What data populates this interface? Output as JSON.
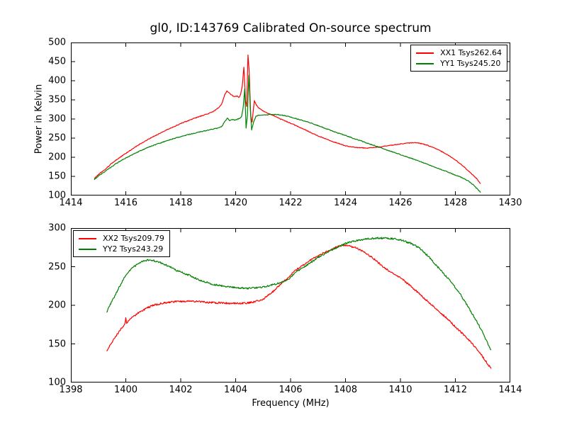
{
  "figure": {
    "background": "#ffffff",
    "axis_color": "#000000"
  },
  "chart_data": [
    {
      "type": "line",
      "title": "gl0, ID:143769 Calibrated On-source spectrum",
      "xlabel": "",
      "ylabel": "Power in Kelvin",
      "xlim": [
        1414,
        1430
      ],
      "ylim": [
        100,
        500
      ],
      "xticks": [
        1414,
        1416,
        1418,
        1420,
        1422,
        1424,
        1426,
        1428,
        1430
      ],
      "yticks": [
        100,
        150,
        200,
        250,
        300,
        350,
        400,
        450,
        500
      ],
      "grid": false,
      "legend_position": "upper right",
      "series": [
        {
          "name": "XX1 Tsys262.64",
          "color": "#ff0000",
          "noise": 0.9,
          "points": [
            [
              1414.85,
              144
            ],
            [
              1415.0,
              155
            ],
            [
              1415.25,
              168
            ],
            [
              1415.5,
              185
            ],
            [
              1415.75,
              198
            ],
            [
              1416.0,
              210
            ],
            [
              1416.25,
              222
            ],
            [
              1416.5,
              234
            ],
            [
              1416.75,
              244
            ],
            [
              1417.0,
              254
            ],
            [
              1417.25,
              263
            ],
            [
              1417.5,
              272
            ],
            [
              1417.75,
              280
            ],
            [
              1418.0,
              288
            ],
            [
              1418.25,
              295
            ],
            [
              1418.5,
              302
            ],
            [
              1418.75,
              308
            ],
            [
              1419.0,
              314
            ],
            [
              1419.2,
              320
            ],
            [
              1419.4,
              331
            ],
            [
              1419.5,
              341
            ],
            [
              1419.6,
              363
            ],
            [
              1419.68,
              373
            ],
            [
              1419.75,
              369
            ],
            [
              1419.85,
              363
            ],
            [
              1419.95,
              358
            ],
            [
              1420.05,
              360
            ],
            [
              1420.12,
              356
            ],
            [
              1420.18,
              364
            ],
            [
              1420.24,
              386
            ],
            [
              1420.3,
              436
            ],
            [
              1420.36,
              348
            ],
            [
              1420.4,
              332
            ],
            [
              1420.45,
              468
            ],
            [
              1420.49,
              428
            ],
            [
              1420.55,
              308
            ],
            [
              1420.6,
              292
            ],
            [
              1420.68,
              348
            ],
            [
              1420.75,
              337
            ],
            [
              1420.85,
              328
            ],
            [
              1421.0,
              321
            ],
            [
              1421.2,
              314
            ],
            [
              1421.4,
              308
            ],
            [
              1421.6,
              301
            ],
            [
              1421.8,
              295
            ],
            [
              1422.0,
              289
            ],
            [
              1422.25,
              281
            ],
            [
              1422.5,
              273
            ],
            [
              1422.75,
              264
            ],
            [
              1423.0,
              256
            ],
            [
              1423.25,
              249
            ],
            [
              1423.5,
              242
            ],
            [
              1423.75,
              236
            ],
            [
              1424.0,
              230
            ],
            [
              1424.25,
              227
            ],
            [
              1424.5,
              225
            ],
            [
              1424.75,
              224
            ],
            [
              1425.0,
              225
            ],
            [
              1425.25,
              227
            ],
            [
              1425.5,
              230
            ],
            [
              1425.75,
              232
            ],
            [
              1426.0,
              235
            ],
            [
              1426.25,
              237
            ],
            [
              1426.5,
              238
            ],
            [
              1426.75,
              236
            ],
            [
              1427.0,
              231
            ],
            [
              1427.25,
              224
            ],
            [
              1427.5,
              215
            ],
            [
              1427.75,
              205
            ],
            [
              1428.0,
              193
            ],
            [
              1428.25,
              179
            ],
            [
              1428.5,
              163
            ],
            [
              1428.75,
              146
            ],
            [
              1428.92,
              131
            ]
          ]
        },
        {
          "name": "YY1 Tsys245.20",
          "color": "#008000",
          "noise": 0.9,
          "points": [
            [
              1414.85,
              141
            ],
            [
              1415.0,
              151
            ],
            [
              1415.25,
              163
            ],
            [
              1415.5,
              176
            ],
            [
              1415.75,
              188
            ],
            [
              1416.0,
              198
            ],
            [
              1416.25,
              207
            ],
            [
              1416.5,
              216
            ],
            [
              1416.75,
              224
            ],
            [
              1417.0,
              231
            ],
            [
              1417.25,
              237
            ],
            [
              1417.5,
              243
            ],
            [
              1417.75,
              249
            ],
            [
              1418.0,
              254
            ],
            [
              1418.25,
              259
            ],
            [
              1418.5,
              263
            ],
            [
              1418.75,
              267
            ],
            [
              1419.0,
              271
            ],
            [
              1419.2,
              274
            ],
            [
              1419.35,
              276
            ],
            [
              1419.5,
              281
            ],
            [
              1419.6,
              293
            ],
            [
              1419.7,
              302
            ],
            [
              1419.78,
              296
            ],
            [
              1419.88,
              299
            ],
            [
              1419.98,
              297
            ],
            [
              1420.08,
              300
            ],
            [
              1420.16,
              302
            ],
            [
              1420.22,
              307
            ],
            [
              1420.28,
              333
            ],
            [
              1420.33,
              379
            ],
            [
              1420.38,
              276
            ],
            [
              1420.43,
              312
            ],
            [
              1420.48,
              415
            ],
            [
              1420.53,
              332
            ],
            [
              1420.58,
              272
            ],
            [
              1420.66,
              293
            ],
            [
              1420.74,
              307
            ],
            [
              1420.85,
              310
            ],
            [
              1421.0,
              310
            ],
            [
              1421.3,
              312
            ],
            [
              1421.6,
              311
            ],
            [
              1421.9,
              307
            ],
            [
              1422.2,
              301
            ],
            [
              1422.5,
              295
            ],
            [
              1422.8,
              288
            ],
            [
              1423.1,
              280
            ],
            [
              1423.4,
              272
            ],
            [
              1423.7,
              264
            ],
            [
              1424.0,
              257
            ],
            [
              1424.3,
              249
            ],
            [
              1424.6,
              242
            ],
            [
              1424.9,
              234
            ],
            [
              1425.2,
              227
            ],
            [
              1425.5,
              219
            ],
            [
              1425.8,
              212
            ],
            [
              1426.1,
              204
            ],
            [
              1426.4,
              197
            ],
            [
              1426.7,
              189
            ],
            [
              1427.0,
              181
            ],
            [
              1427.3,
              173
            ],
            [
              1427.6,
              165
            ],
            [
              1427.9,
              156
            ],
            [
              1428.2,
              148
            ],
            [
              1428.45,
              139
            ],
            [
              1428.65,
              128
            ],
            [
              1428.8,
              117
            ],
            [
              1428.92,
              108
            ]
          ]
        }
      ]
    },
    {
      "type": "line",
      "title": "",
      "xlabel": "Frequency (MHz)",
      "ylabel": "",
      "xlim": [
        1398,
        1414
      ],
      "ylim": [
        100,
        300
      ],
      "xticks": [
        1398,
        1400,
        1402,
        1404,
        1406,
        1408,
        1410,
        1412,
        1414
      ],
      "yticks": [
        100,
        150,
        200,
        250,
        300
      ],
      "grid": false,
      "legend_position": "upper left",
      "series": [
        {
          "name": "XX2 Tsys209.79",
          "color": "#ff0000",
          "noise": 1.1,
          "points": [
            [
              1399.3,
              140
            ],
            [
              1399.45,
              150
            ],
            [
              1399.6,
              158
            ],
            [
              1399.8,
              168
            ],
            [
              1399.97,
              176
            ],
            [
              1400.0,
              183
            ],
            [
              1400.03,
              177
            ],
            [
              1400.2,
              183
            ],
            [
              1400.4,
              189
            ],
            [
              1400.6,
              193
            ],
            [
              1400.8,
              197
            ],
            [
              1401.0,
              200
            ],
            [
              1401.25,
              202
            ],
            [
              1401.5,
              203.5
            ],
            [
              1401.75,
              204.5
            ],
            [
              1402.0,
              205
            ],
            [
              1402.3,
              205.5
            ],
            [
              1402.6,
              205
            ],
            [
              1402.9,
              204
            ],
            [
              1403.2,
              203.5
            ],
            [
              1403.5,
              203
            ],
            [
              1403.8,
              202.5
            ],
            [
              1404.1,
              202.5
            ],
            [
              1404.4,
              203
            ],
            [
              1404.7,
              204.5
            ],
            [
              1405.0,
              208
            ],
            [
              1405.3,
              216
            ],
            [
              1405.6,
              226
            ],
            [
              1405.9,
              236
            ],
            [
              1406.2,
              246
            ],
            [
              1406.5,
              253
            ],
            [
              1406.8,
              260
            ],
            [
              1407.1,
              266
            ],
            [
              1407.4,
              271
            ],
            [
              1407.7,
              276
            ],
            [
              1407.9,
              278
            ],
            [
              1408.1,
              277.5
            ],
            [
              1408.4,
              274
            ],
            [
              1408.7,
              269
            ],
            [
              1409.0,
              261
            ],
            [
              1409.3,
              252
            ],
            [
              1409.6,
              244
            ],
            [
              1409.9,
              238
            ],
            [
              1410.2,
              230
            ],
            [
              1410.5,
              221
            ],
            [
              1410.8,
              211
            ],
            [
              1411.1,
              202
            ],
            [
              1411.4,
              192
            ],
            [
              1411.7,
              183
            ],
            [
              1412.0,
              172
            ],
            [
              1412.3,
              162
            ],
            [
              1412.6,
              151
            ],
            [
              1412.9,
              138
            ],
            [
              1413.1,
              128
            ],
            [
              1413.3,
              118
            ]
          ]
        },
        {
          "name": "YY2 Tsys243.29",
          "color": "#008000",
          "noise": 1.1,
          "points": [
            [
              1399.3,
              191
            ],
            [
              1399.45,
              202
            ],
            [
              1399.6,
              212
            ],
            [
              1399.8,
              226
            ],
            [
              1400.0,
              239
            ],
            [
              1400.2,
              247
            ],
            [
              1400.4,
              253
            ],
            [
              1400.6,
              257
            ],
            [
              1400.8,
              258.5
            ],
            [
              1401.0,
              258
            ],
            [
              1401.2,
              256
            ],
            [
              1401.4,
              253
            ],
            [
              1401.6,
              250
            ],
            [
              1401.8,
              246
            ],
            [
              1402.0,
              243
            ],
            [
              1402.3,
              239
            ],
            [
              1402.6,
              234
            ],
            [
              1402.9,
              230
            ],
            [
              1403.2,
              227
            ],
            [
              1403.5,
              225
            ],
            [
              1403.8,
              223.5
            ],
            [
              1404.1,
              222.5
            ],
            [
              1404.4,
              222
            ],
            [
              1404.7,
              222.5
            ],
            [
              1405.0,
              224
            ],
            [
              1405.3,
              226
            ],
            [
              1405.6,
              229
            ],
            [
              1405.9,
              233
            ],
            [
              1406.2,
              243
            ],
            [
              1406.5,
              250
            ],
            [
              1406.8,
              257
            ],
            [
              1407.1,
              264
            ],
            [
              1407.4,
              270
            ],
            [
              1407.7,
              275
            ],
            [
              1408.0,
              280
            ],
            [
              1408.3,
              283
            ],
            [
              1408.6,
              285
            ],
            [
              1408.9,
              286.5
            ],
            [
              1409.2,
              287
            ],
            [
              1409.5,
              287
            ],
            [
              1409.8,
              286
            ],
            [
              1410.1,
              283.5
            ],
            [
              1410.4,
              280
            ],
            [
              1410.7,
              274
            ],
            [
              1411.0,
              264
            ],
            [
              1411.3,
              252
            ],
            [
              1411.6,
              240
            ],
            [
              1411.9,
              228
            ],
            [
              1412.2,
              213
            ],
            [
              1412.5,
              196
            ],
            [
              1412.8,
              178
            ],
            [
              1413.0,
              164
            ],
            [
              1413.15,
              153
            ],
            [
              1413.3,
              142
            ]
          ]
        }
      ]
    }
  ]
}
